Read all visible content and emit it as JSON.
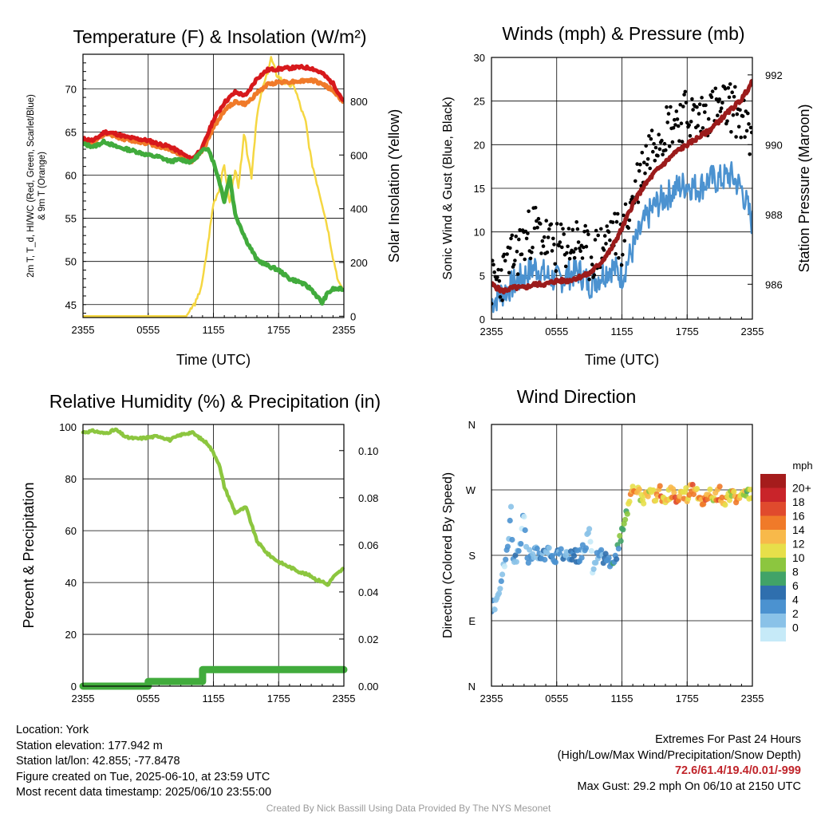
{
  "chart_data": [
    {
      "type": "line",
      "title": "Temperature (F) & Insolation (W/m²)",
      "xlabel": "Time (UTC)",
      "ylabel": "2m T, T_d, HI/WC (Red, Green, Scarlet/Blue) & 9m T (Orange)",
      "y2label": "Solar Insolation (Yellow)",
      "x_ticks": [
        "2355",
        "0555",
        "1155",
        "1755",
        "2355"
      ],
      "x_hours_range": [
        0,
        24
      ],
      "ylim": [
        43.5,
        74
      ],
      "y_ticks": [
        45,
        50,
        55,
        60,
        65,
        70
      ],
      "y2lim": [
        -5,
        975
      ],
      "y2_ticks": [
        0,
        200,
        400,
        600,
        800
      ],
      "grid": true,
      "series": [
        {
          "axis": "left",
          "color": "#d7191c",
          "x": [
            0,
            1,
            2,
            3,
            4,
            5,
            6,
            7,
            8,
            9,
            10,
            11,
            12,
            13,
            14,
            15,
            16,
            17,
            18,
            19,
            20,
            21,
            22,
            23,
            24
          ],
          "y": [
            64.2,
            64.0,
            65.0,
            64.8,
            64.4,
            64.2,
            64.0,
            63.6,
            63.3,
            62.6,
            61.8,
            63.2,
            66.4,
            68.4,
            69.6,
            69.2,
            71.2,
            72.2,
            72.3,
            72.4,
            72.5,
            72.4,
            71.8,
            70.6,
            68.5
          ]
        },
        {
          "axis": "left",
          "color": "#f07a29",
          "x": [
            0,
            1,
            2,
            3,
            4,
            5,
            6,
            7,
            8,
            9,
            10,
            11,
            12,
            13,
            14,
            15,
            16,
            17,
            18,
            19,
            20,
            21,
            22,
            23,
            24
          ],
          "y": [
            64.0,
            63.8,
            64.7,
            64.5,
            64.1,
            63.9,
            63.7,
            63.3,
            63.0,
            62.3,
            61.6,
            62.8,
            65.5,
            67.5,
            68.5,
            68.2,
            69.5,
            70.5,
            70.8,
            70.8,
            70.9,
            71.0,
            70.6,
            69.8,
            68.4
          ]
        },
        {
          "axis": "left",
          "color": "#41ab3c",
          "x": [
            0,
            1,
            2,
            3,
            4,
            5,
            6,
            7,
            8,
            9,
            10,
            10.5,
            11,
            11.5,
            12,
            12.5,
            13,
            13.5,
            14,
            15,
            16,
            17,
            18,
            19,
            20,
            21,
            22,
            22.5,
            23,
            24
          ],
          "y": [
            63.6,
            63.3,
            63.9,
            63.3,
            63.0,
            62.7,
            62.3,
            62.1,
            61.6,
            61.8,
            61.5,
            62.2,
            62.8,
            63.2,
            61.5,
            59.5,
            57.0,
            59.8,
            55.5,
            52.5,
            50.2,
            49.5,
            49.0,
            48.0,
            47.6,
            46.8,
            45.2,
            46.3,
            46.8,
            46.8
          ]
        },
        {
          "axis": "right",
          "color": "#f5d742",
          "x": [
            0,
            9.5,
            10,
            10.5,
            11,
            11.5,
            12,
            12.5,
            13,
            13.5,
            14,
            14.3,
            14.8,
            15.2,
            15.5,
            16,
            16.5,
            17,
            17.3,
            17.8,
            18.5,
            19,
            19.5,
            20,
            20.5,
            21,
            21.5,
            22,
            22.5,
            23,
            23.5,
            24
          ],
          "y": [
            0,
            0,
            30,
            60,
            130,
            270,
            420,
            470,
            560,
            420,
            550,
            470,
            680,
            590,
            520,
            750,
            840,
            910,
            960,
            900,
            870,
            860,
            850,
            780,
            720,
            580,
            500,
            420,
            330,
            220,
            130,
            95
          ]
        }
      ]
    },
    {
      "type": "line",
      "title": "Winds (mph) & Pressure (mb)",
      "xlabel": "Time (UTC)",
      "ylabel": "Sonic Wind & Gust (Blue, Black)",
      "y2label": "Station Pressure (Maroon)",
      "x_ticks": [
        "2355",
        "0555",
        "1155",
        "1755",
        "2355"
      ],
      "x_hours_range": [
        0,
        24
      ],
      "ylim": [
        0,
        30
      ],
      "y_ticks": [
        0,
        5,
        10,
        15,
        20,
        25,
        30
      ],
      "y2lim": [
        985.0,
        992.5
      ],
      "y2_ticks": [
        986,
        988,
        990,
        992
      ],
      "grid": true,
      "series": [
        {
          "axis": "left",
          "color": "#4b92d0",
          "x": [
            0,
            1,
            2,
            3,
            4,
            5,
            6,
            7,
            8,
            9,
            10,
            11,
            12,
            13,
            14,
            15,
            16,
            17,
            18,
            19,
            20,
            21,
            22,
            23,
            24
          ],
          "y": [
            2.0,
            3.0,
            4.0,
            5.0,
            6.0,
            5.0,
            4.5,
            5.0,
            5.5,
            4.0,
            5.0,
            6.0,
            5.0,
            8.0,
            11.0,
            13.0,
            14.0,
            15.0,
            15.5,
            15.0,
            16.0,
            16.0,
            16.5,
            15.0,
            11.0
          ]
        },
        {
          "axis": "left",
          "color": "#000000",
          "marker": "dot",
          "x": [
            0,
            1,
            2,
            3,
            4,
            5,
            6,
            7,
            8,
            9,
            10,
            11,
            12,
            13,
            14,
            15,
            16,
            17,
            18,
            19,
            20,
            21,
            22,
            23,
            24
          ],
          "y": [
            4.0,
            5.0,
            7.0,
            9.0,
            10.5,
            9.0,
            8.0,
            8.5,
            9.0,
            7.0,
            8.0,
            10.0,
            9.0,
            14.0,
            18.0,
            21.0,
            22.0,
            23.0,
            23.5,
            23.0,
            24.0,
            24.0,
            24.5,
            23.0,
            20.0
          ]
        },
        {
          "axis": "right",
          "color": "#9b1b1b",
          "x": [
            0,
            1,
            2,
            3,
            4,
            5,
            6,
            7,
            8,
            9,
            10,
            11,
            12,
            13,
            14,
            15,
            16,
            17,
            18,
            19,
            20,
            21,
            22,
            23,
            24
          ],
          "y": [
            986.0,
            985.8,
            985.9,
            985.9,
            986.0,
            986.0,
            986.1,
            986.1,
            986.2,
            986.3,
            986.6,
            987.0,
            987.6,
            988.3,
            988.8,
            989.2,
            989.5,
            989.8,
            990.0,
            990.2,
            990.4,
            990.7,
            991.0,
            991.3,
            991.8
          ]
        }
      ]
    },
    {
      "type": "line",
      "title": "Relative Humidity (%) & Precipitation (in)",
      "ylabel": "Percent & Precipitation",
      "x_ticks": [
        "2355",
        "0555",
        "1155",
        "1755",
        "2355"
      ],
      "x_hours_range": [
        0,
        24
      ],
      "ylim": [
        0,
        101
      ],
      "y_ticks": [
        0,
        20,
        40,
        60,
        80,
        100
      ],
      "y2lim": [
        0,
        0.1111
      ],
      "y2_ticks": [
        "0.00",
        "0.02",
        "0.04",
        "0.06",
        "0.08",
        "0.10"
      ],
      "grid": true,
      "series": [
        {
          "axis": "left",
          "color": "#8cc63f",
          "x": [
            0,
            1,
            2,
            3,
            4,
            5,
            6,
            7,
            8,
            9,
            10,
            10.5,
            11,
            11.5,
            12,
            12.5,
            13,
            13.5,
            14,
            15,
            16,
            17,
            18,
            19,
            20,
            21,
            21.5,
            22,
            22.5,
            23,
            24
          ],
          "y": [
            98.0,
            98.5,
            97.5,
            99.0,
            96.0,
            95.5,
            96.0,
            96.5,
            95.0,
            97.0,
            98.0,
            96.5,
            95.0,
            93.5,
            90.0,
            86.0,
            77.0,
            72.0,
            67.0,
            69.0,
            56.0,
            51.0,
            48.0,
            46.0,
            44.0,
            42.5,
            41.0,
            40.5,
            39.0,
            42.0,
            45.5
          ]
        },
        {
          "axis": "right",
          "color": "#41ab3c",
          "kind": "step",
          "x": [
            0,
            6,
            6,
            11,
            11,
            24
          ],
          "y": [
            0.0,
            0.0,
            0.002,
            0.002,
            0.007,
            0.007
          ]
        }
      ]
    },
    {
      "type": "scatter",
      "title": "Wind Direction",
      "ylabel": "Direction (Colored By Speed)",
      "x_ticks": [
        "2355",
        "0555",
        "1155",
        "1755",
        "2355"
      ],
      "x_hours_range": [
        0,
        24
      ],
      "y_ticks": [
        "N",
        "E",
        "S",
        "W",
        "N"
      ],
      "ylim": [
        0,
        360
      ],
      "grid": true,
      "colorbar": {
        "title": "mph",
        "labels": [
          "20+",
          "18",
          "16",
          "14",
          "12",
          "10",
          "8",
          "6",
          "4",
          "2",
          "0"
        ],
        "colors": [
          "#c6eaf8",
          "#8ac2e8",
          "#4b92d0",
          "#2f6fae",
          "#41a368",
          "#8cc63f",
          "#e7df4a",
          "#f8b94a",
          "#f07a29",
          "#e04a2d",
          "#c9242a",
          "#a51c1c"
        ]
      },
      "points": [
        {
          "x": 0.3,
          "y": 110,
          "s": 2
        },
        {
          "x": 0.7,
          "y": 128,
          "s": 2
        },
        {
          "x": 1.0,
          "y": 152,
          "s": 2
        },
        {
          "x": 1.2,
          "y": 168,
          "s": 1
        },
        {
          "x": 1.5,
          "y": 195,
          "s": 3
        },
        {
          "x": 1.8,
          "y": 240,
          "s": 3
        },
        {
          "x": 2.0,
          "y": 175,
          "s": 2
        },
        {
          "x": 2.3,
          "y": 172,
          "s": 4
        },
        {
          "x": 2.6,
          "y": 190,
          "s": 2
        },
        {
          "x": 3.0,
          "y": 238,
          "s": 2
        },
        {
          "x": 3.3,
          "y": 176,
          "s": 5
        },
        {
          "x": 3.6,
          "y": 182,
          "s": 4
        },
        {
          "x": 4.0,
          "y": 186,
          "s": 3
        },
        {
          "x": 4.4,
          "y": 175,
          "s": 5
        },
        {
          "x": 4.8,
          "y": 181,
          "s": 4
        },
        {
          "x": 5.2,
          "y": 188,
          "s": 3
        },
        {
          "x": 5.6,
          "y": 172,
          "s": 5
        },
        {
          "x": 6.0,
          "y": 180,
          "s": 4
        },
        {
          "x": 6.5,
          "y": 185,
          "s": 3
        },
        {
          "x": 7.0,
          "y": 176,
          "s": 4
        },
        {
          "x": 7.5,
          "y": 182,
          "s": 5
        },
        {
          "x": 8.0,
          "y": 178,
          "s": 4
        },
        {
          "x": 8.5,
          "y": 188,
          "s": 3
        },
        {
          "x": 9.0,
          "y": 212,
          "s": 2
        },
        {
          "x": 9.3,
          "y": 160,
          "s": 2
        },
        {
          "x": 9.6,
          "y": 178,
          "s": 4
        },
        {
          "x": 10.0,
          "y": 184,
          "s": 3
        },
        {
          "x": 10.4,
          "y": 176,
          "s": 5
        },
        {
          "x": 10.8,
          "y": 170,
          "s": 4
        },
        {
          "x": 11.2,
          "y": 165,
          "s": 5
        },
        {
          "x": 11.6,
          "y": 186,
          "s": 6
        },
        {
          "x": 12.0,
          "y": 212,
          "s": 9
        },
        {
          "x": 12.4,
          "y": 236,
          "s": 10
        },
        {
          "x": 12.8,
          "y": 260,
          "s": 13
        },
        {
          "x": 13.2,
          "y": 275,
          "s": 15
        },
        {
          "x": 13.6,
          "y": 262,
          "s": 12
        },
        {
          "x": 14.0,
          "y": 258,
          "s": 14
        },
        {
          "x": 14.5,
          "y": 270,
          "s": 12
        },
        {
          "x": 15.0,
          "y": 262,
          "s": 15
        },
        {
          "x": 15.5,
          "y": 268,
          "s": 16
        },
        {
          "x": 16.0,
          "y": 256,
          "s": 13
        },
        {
          "x": 16.5,
          "y": 266,
          "s": 14
        },
        {
          "x": 17.0,
          "y": 258,
          "s": 17
        },
        {
          "x": 17.5,
          "y": 270,
          "s": 15
        },
        {
          "x": 18.0,
          "y": 262,
          "s": 12
        },
        {
          "x": 18.5,
          "y": 272,
          "s": 16
        },
        {
          "x": 19.0,
          "y": 264,
          "s": 14
        },
        {
          "x": 19.5,
          "y": 256,
          "s": 17
        },
        {
          "x": 20.0,
          "y": 268,
          "s": 15
        },
        {
          "x": 20.5,
          "y": 260,
          "s": 13
        },
        {
          "x": 21.0,
          "y": 266,
          "s": 16
        },
        {
          "x": 21.5,
          "y": 255,
          "s": 14
        },
        {
          "x": 22.0,
          "y": 264,
          "s": 12
        },
        {
          "x": 22.5,
          "y": 260,
          "s": 15
        },
        {
          "x": 23.0,
          "y": 266,
          "s": 13
        },
        {
          "x": 23.5,
          "y": 262,
          "s": 11
        },
        {
          "x": 24.0,
          "y": 264,
          "s": 12
        }
      ]
    }
  ],
  "info": {
    "location": "Location: York",
    "elevation": "Station elevation: 177.942 m",
    "latlon": "Station lat/lon: 42.855; -77.8478",
    "created": "Figure created on Tue, 2025-06-10, at 23:59 UTC",
    "recent": "Most recent data timestamp: 2025/06/10 23:55:00"
  },
  "extremes": {
    "title": "Extremes For Past 24 Hours",
    "subtitle": "(High/Low/Max Wind/Precipitation/Snow Depth)",
    "values": "72.6/61.4/19.4/0.01/-999",
    "max_gust": "Max Gust: 29.2 mph On 06/10 at 2150 UTC"
  },
  "credit": "Created By Nick Bassill Using Data Provided By The NYS Mesonet"
}
